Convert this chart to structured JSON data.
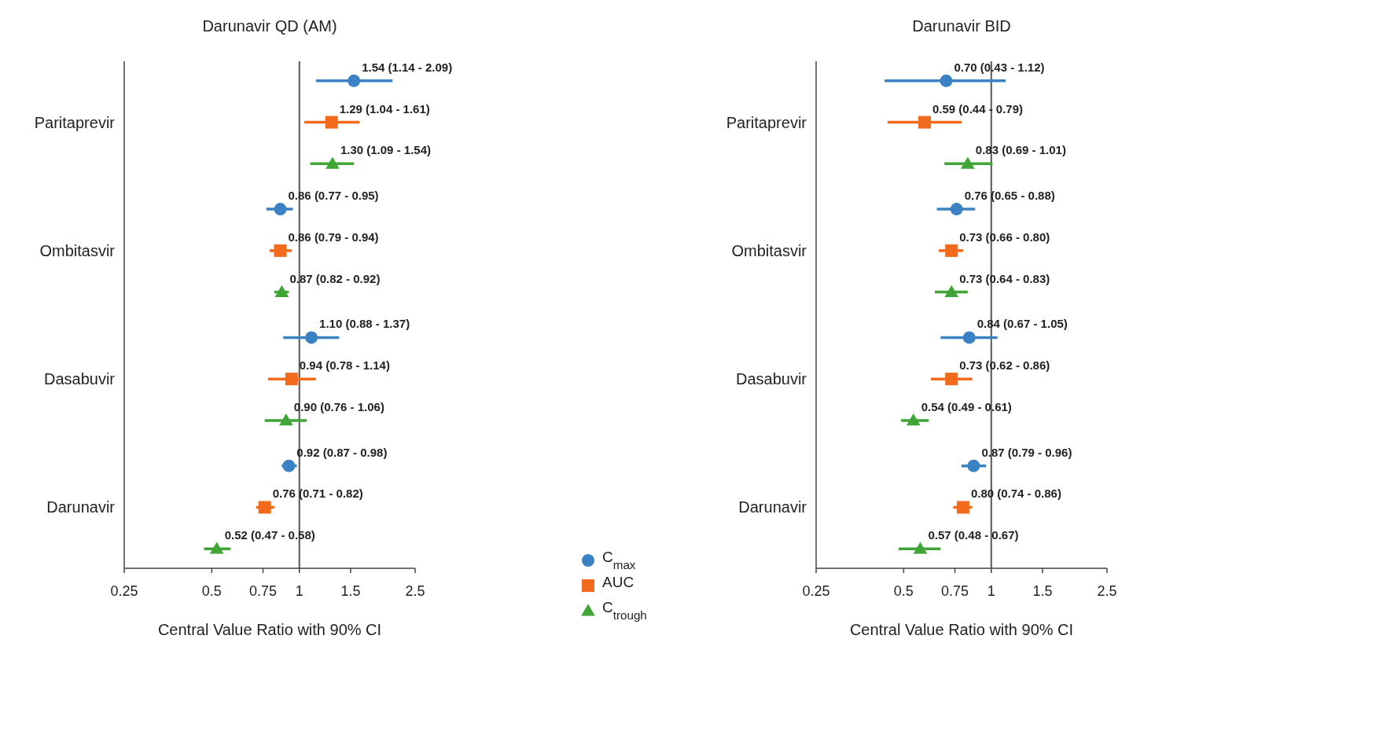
{
  "chart_data": [
    {
      "type": "scatter",
      "title": "Darunavir QD (AM)",
      "xlabel": "Central Value Ratio with 90% CI",
      "orientation": "horizontal",
      "log": "x",
      "xlim": [
        0.25,
        2.5
      ],
      "xticks": [
        0.25,
        0.5,
        0.75,
        1,
        1.5,
        2.5
      ],
      "categories": [
        "Paritaprevir",
        "Ombitasvir",
        "Dasabuvir",
        "Darunavir"
      ],
      "legend": "bottom right",
      "grid": false,
      "ref_lines": [
        {
          "axis": "x",
          "value": 1,
          "color": "#555555"
        }
      ],
      "series": [
        {
          "name": "C$_{max}$",
          "color": "#3b82c4",
          "marker": "circle",
          "values": [
            1.54,
            0.86,
            1.1,
            0.92
          ],
          "errors": [
            [
              1.14,
              2.09
            ],
            [
              0.77,
              0.95
            ],
            [
              0.88,
              1.37
            ],
            [
              0.87,
              0.98
            ]
          ],
          "value_labels": [
            "1.54 (1.14 - 2.09)",
            "0.86 (0.77 - 0.95)",
            "1.10 (0.88 - 1.37)",
            "0.92 (0.87 - 0.98)"
          ]
        },
        {
          "name": "AUC",
          "color": "#f26a1b",
          "marker": "square",
          "values": [
            1.29,
            0.86,
            0.94,
            0.76
          ],
          "errors": [
            [
              1.04,
              1.61
            ],
            [
              0.79,
              0.94
            ],
            [
              0.78,
              1.14
            ],
            [
              0.71,
              0.82
            ]
          ],
          "value_labels": [
            "1.29 (1.04 - 1.61)",
            "0.86 (0.79 - 0.94)",
            "0.94 (0.78 - 1.14)",
            "0.76 (0.71 - 0.82)"
          ]
        },
        {
          "name": "C$_{trough}$",
          "color": "#3fa535",
          "marker": "triangle",
          "values": [
            1.3,
            0.87,
            0.9,
            0.52
          ],
          "errors": [
            [
              1.09,
              1.54
            ],
            [
              0.82,
              0.92
            ],
            [
              0.76,
              1.06
            ],
            [
              0.47,
              0.58
            ]
          ],
          "value_labels": [
            "1.30 (1.09 - 1.54)",
            "0.87 (0.82 - 0.92)",
            "0.90 (0.76 - 1.06)",
            "0.52 (0.47 - 0.58)"
          ]
        }
      ]
    },
    {
      "type": "scatter",
      "title": "Darunavir BID",
      "xlabel": "Central Value Ratio with 90% CI",
      "orientation": "horizontal",
      "log": "x",
      "xlim": [
        0.25,
        2.5
      ],
      "xticks": [
        0.25,
        0.5,
        0.75,
        1,
        1.5,
        2.5
      ],
      "categories": [
        "Paritaprevir",
        "Ombitasvir",
        "Dasabuvir",
        "Darunavir"
      ],
      "grid": false,
      "ref_lines": [
        {
          "axis": "x",
          "value": 1,
          "color": "#555555"
        }
      ],
      "series": [
        {
          "color": "#3b82c4",
          "marker": "circle",
          "values": [
            0.7,
            0.76,
            0.84,
            0.87
          ],
          "errors": [
            [
              0.43,
              1.12
            ],
            [
              0.65,
              0.88
            ],
            [
              0.67,
              1.05
            ],
            [
              0.79,
              0.96
            ]
          ],
          "value_labels": [
            "0.70 (0.43 - 1.12)",
            "0.76 (0.65 - 0.88)",
            "0.84 (0.67 - 1.05)",
            "0.87 (0.79 - 0.96)"
          ]
        },
        {
          "color": "#f26a1b",
          "marker": "square",
          "values": [
            0.59,
            0.73,
            0.73,
            0.8
          ],
          "errors": [
            [
              0.44,
              0.79
            ],
            [
              0.66,
              0.8
            ],
            [
              0.62,
              0.86
            ],
            [
              0.74,
              0.86
            ]
          ],
          "value_labels": [
            "0.59 (0.44 - 0.79)",
            "0.73 (0.66 - 0.80)",
            "0.73 (0.62 - 0.86)",
            "0.80 (0.74 - 0.86)"
          ]
        },
        {
          "color": "#3fa535",
          "marker": "triangle",
          "values": [
            0.83,
            0.73,
            0.54,
            0.57
          ],
          "errors": [
            [
              0.69,
              1.01
            ],
            [
              0.64,
              0.83
            ],
            [
              0.49,
              0.61
            ],
            [
              0.48,
              0.67
            ]
          ],
          "value_labels": [
            "0.83 (0.69 - 1.01)",
            "0.73 (0.64 - 0.83)",
            "0.54 (0.49 - 0.61)",
            "0.57 (0.48 - 0.67)"
          ]
        }
      ]
    }
  ]
}
